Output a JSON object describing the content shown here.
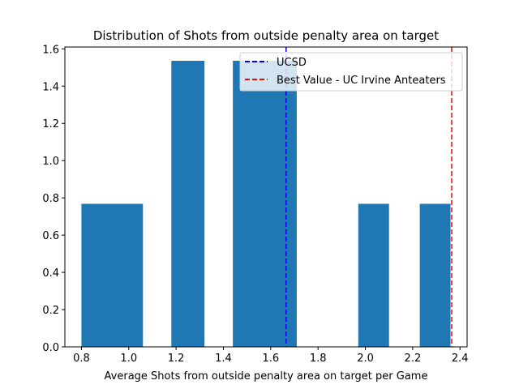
{
  "chart_data": {
    "type": "bar",
    "title": "Distribution of Shots from outside penalty area on target",
    "xlabel": "Average Shots from outside penalty area on target per Game",
    "ylabel": "",
    "xlim": [
      0.73,
      2.43
    ],
    "ylim": [
      0.0,
      1.61
    ],
    "xticks": [
      0.8,
      1.0,
      1.2,
      1.4,
      1.6,
      1.8,
      2.0,
      2.2,
      2.4
    ],
    "xtick_labels": [
      "0.8",
      "1.0",
      "1.2",
      "1.4",
      "1.6",
      "1.8",
      "2.0",
      "2.2",
      "2.4"
    ],
    "yticks": [
      0.0,
      0.2,
      0.4,
      0.6,
      0.8,
      1.0,
      1.2,
      1.4,
      1.6
    ],
    "ytick_labels": [
      "0.0",
      "0.2",
      "0.4",
      "0.6",
      "0.8",
      "1.0",
      "1.2",
      "1.4",
      "1.6"
    ],
    "bar_color": "#1f77b4",
    "bins": [
      {
        "x0": 0.8,
        "x1": 1.06,
        "value": 0.768
      },
      {
        "x0": 1.18,
        "x1": 1.32,
        "value": 1.536
      },
      {
        "x0": 1.44,
        "x1": 1.71,
        "value": 1.536
      },
      {
        "x0": 1.97,
        "x1": 2.1,
        "value": 0.768
      },
      {
        "x0": 2.23,
        "x1": 2.36,
        "value": 0.768
      }
    ],
    "vlines": [
      {
        "name": "UCSD",
        "x": 1.665,
        "color": "#0000ff"
      },
      {
        "name": "Best Value - UC Irvine Anteaters",
        "x": 2.365,
        "color": "#ff0000"
      }
    ],
    "legend": {
      "placement": "top-right",
      "entries": [
        "UCSD",
        "Best Value - UC Irvine Anteaters"
      ]
    }
  }
}
